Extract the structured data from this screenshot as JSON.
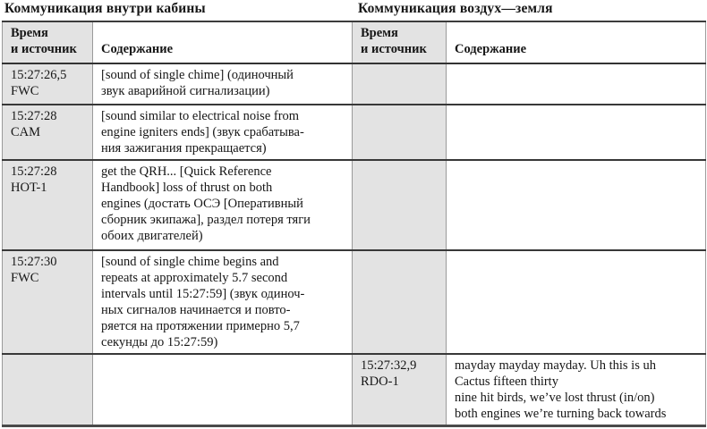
{
  "left_table": {
    "title": "Коммуникация внутри кабины",
    "header_time": "Время\nи источник",
    "header_content": "Содержание"
  },
  "right_table": {
    "title": "Коммуникация воздух—земля",
    "header_time": "Время\nи источник",
    "header_content": "Содержание"
  },
  "rows": [
    {
      "left_time": "15:27:26,5\nFWC",
      "left_content": "[sound of single chime] (одиночный\nзвук аварийной сигнализации)",
      "right_time": "",
      "right_content": ""
    },
    {
      "left_time": "15:27:28\nCAM",
      "left_content": "[sound similar to electrical noise from\nengine igniters ends] (звук срабатыва-\nния зажигания прекращается)",
      "right_time": "",
      "right_content": ""
    },
    {
      "left_time": "15:27:28\nHOT-1",
      "left_content": "get the QRH... [Quick Reference\nHandbook] loss of thrust on both\nengines (достать ОСЭ [Оперативный\nсборник экипажа], раздел потеря тяги\nобоих двигателей)",
      "right_time": "",
      "right_content": ""
    },
    {
      "left_time": "15:27:30\nFWC",
      "left_content": "[sound of single chime begins and\nrepeats at approximately 5.7 second\nintervals until 15:27:59] (звук одиноч-\nных сигналов начинается и повто-\nряется на протяжении примерно 5,7\nсекунды до 15:27:59)",
      "right_time": "",
      "right_content": ""
    },
    {
      "left_time": "",
      "left_content": "",
      "right_time": "15:27:32,9\nRDO-1",
      "right_content": "mayday mayday mayday. Uh this is uh\nCactus fifteen thirty\nnine hit birds, we’ve lost thrust (in/on)\nboth engines we’re turning back towards"
    }
  ]
}
